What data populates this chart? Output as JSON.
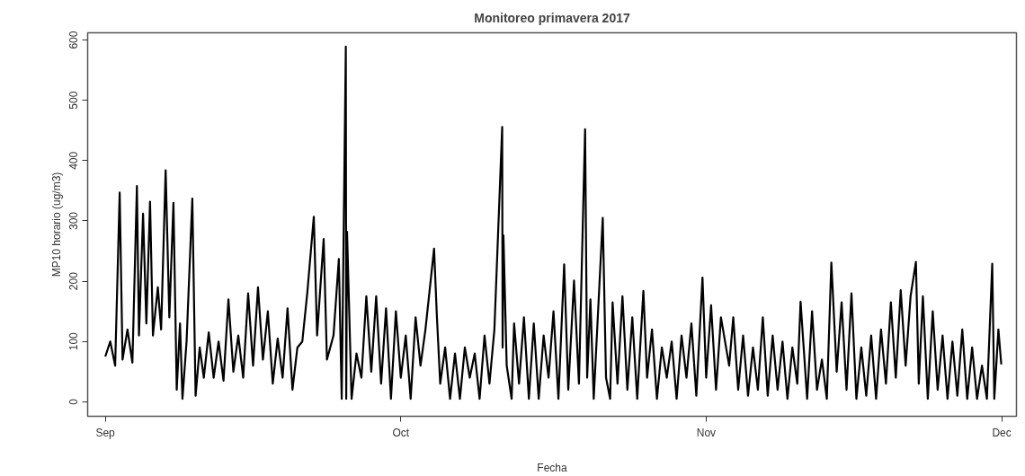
{
  "chart_data": {
    "type": "line",
    "title": "Monitoreo primavera 2017",
    "xlabel": "Fecha",
    "ylabel": "MP10 horario (ug/m3)",
    "xlim": [
      "2017-08-30T05:00",
      "2017-12-02T12:00"
    ],
    "ylim": [
      -24,
      612
    ],
    "xticks": [
      {
        "value": "2017-09-01",
        "label": "Sep"
      },
      {
        "value": "2017-10-01",
        "label": "Oct"
      },
      {
        "value": "2017-11-01",
        "label": "Nov"
      },
      {
        "value": "2017-12-01",
        "label": "Dec"
      }
    ],
    "yticks": [
      0,
      100,
      200,
      300,
      400,
      500,
      600
    ],
    "x": [
      "2017-09-01T00:00",
      "2017-09-01T12:00",
      "2017-09-02T00:00",
      "2017-09-02T11:00",
      "2017-09-02T18:00",
      "2017-09-03T06:00",
      "2017-09-03T18:00",
      "2017-09-04T05:00",
      "2017-09-04T10:00",
      "2017-09-04T20:00",
      "2017-09-05T04:00",
      "2017-09-05T13:00",
      "2017-09-05T20:00",
      "2017-09-06T08:00",
      "2017-09-06T16:00",
      "2017-09-07T03:00",
      "2017-09-07T12:00",
      "2017-09-07T22:00",
      "2017-09-08T06:00",
      "2017-09-08T14:00",
      "2017-09-08T20:00",
      "2017-09-09T06:00",
      "2017-09-09T20:00",
      "2017-09-10T04:00",
      "2017-09-10T14:00",
      "2017-09-11T00:00",
      "2017-09-11T12:00",
      "2017-09-12T00:00",
      "2017-09-12T12:00",
      "2017-09-13T00:00",
      "2017-09-13T12:00",
      "2017-09-14T00:00",
      "2017-09-14T12:00",
      "2017-09-15T00:00",
      "2017-09-15T12:00",
      "2017-09-16T00:00",
      "2017-09-16T12:00",
      "2017-09-17T00:00",
      "2017-09-17T12:00",
      "2017-09-18T00:00",
      "2017-09-18T12:00",
      "2017-09-19T00:00",
      "2017-09-19T12:00",
      "2017-09-20T00:00",
      "2017-09-20T12:00",
      "2017-09-21T00:00",
      "2017-09-21T12:00",
      "2017-09-22T04:00",
      "2017-09-22T12:00",
      "2017-09-23T04:00",
      "2017-09-23T12:00",
      "2017-09-24T04:00",
      "2017-09-24T17:00",
      "2017-09-25T00:00",
      "2017-09-25T10:00",
      "2017-09-25T11:00",
      "2017-09-25T13:00",
      "2017-09-26T00:00",
      "2017-09-26T12:00",
      "2017-09-27T00:00",
      "2017-09-27T12:00",
      "2017-09-28T00:00",
      "2017-09-28T12:00",
      "2017-09-29T00:00",
      "2017-09-29T12:00",
      "2017-09-30T00:00",
      "2017-09-30T12:00",
      "2017-10-01T00:00",
      "2017-10-01T12:00",
      "2017-10-02T00:00",
      "2017-10-02T12:00",
      "2017-10-03T00:00",
      "2017-10-03T12:00",
      "2017-10-04T09:00",
      "2017-10-04T16:00",
      "2017-10-05T00:00",
      "2017-10-05T12:00",
      "2017-10-06T00:00",
      "2017-10-06T12:00",
      "2017-10-07T00:00",
      "2017-10-07T12:00",
      "2017-10-08T00:00",
      "2017-10-08T12:00",
      "2017-10-09T00:00",
      "2017-10-09T12:00",
      "2017-10-10T00:00",
      "2017-10-10T12:00",
      "2017-10-11T07:00",
      "2017-10-11T08:00",
      "2017-10-11T10:00",
      "2017-10-11T18:00",
      "2017-10-12T06:00",
      "2017-10-12T12:00",
      "2017-10-13T00:00",
      "2017-10-13T12:00",
      "2017-10-14T00:00",
      "2017-10-14T12:00",
      "2017-10-15T00:00",
      "2017-10-15T12:00",
      "2017-10-16T00:00",
      "2017-10-16T12:00",
      "2017-10-17T00:00",
      "2017-10-17T14:00",
      "2017-10-18T00:00",
      "2017-10-18T14:00",
      "2017-10-19T02:00",
      "2017-10-19T17:00",
      "2017-10-19T22:00",
      "2017-10-20T06:00",
      "2017-10-20T14:00",
      "2017-10-21T12:00",
      "2017-10-21T20:00",
      "2017-10-22T06:00",
      "2017-10-22T12:00",
      "2017-10-23T00:00",
      "2017-10-23T12:00",
      "2017-10-24T00:00",
      "2017-10-24T12:00",
      "2017-10-25T00:00",
      "2017-10-25T15:00",
      "2017-10-26T00:00",
      "2017-10-26T12:00",
      "2017-10-27T00:00",
      "2017-10-27T12:00",
      "2017-10-28T00:00",
      "2017-10-28T12:00",
      "2017-10-29T00:00",
      "2017-10-29T12:00",
      "2017-10-30T00:00",
      "2017-10-30T12:00",
      "2017-10-31T00:00",
      "2017-10-31T15:00",
      "2017-11-01T00:00",
      "2017-11-01T12:00",
      "2017-11-02T00:00",
      "2017-11-02T12:00",
      "2017-11-03T08:00",
      "2017-11-03T18:00",
      "2017-11-04T06:00",
      "2017-11-04T18:00",
      "2017-11-05T06:00",
      "2017-11-05T18:00",
      "2017-11-06T06:00",
      "2017-11-06T18:00",
      "2017-11-07T06:00",
      "2017-11-07T18:00",
      "2017-11-08T06:00",
      "2017-11-08T18:00",
      "2017-11-09T06:00",
      "2017-11-09T18:00",
      "2017-11-10T06:00",
      "2017-11-10T14:00",
      "2017-11-11T06:00",
      "2017-11-11T18:00",
      "2017-11-12T06:00",
      "2017-11-12T18:00",
      "2017-11-13T06:00",
      "2017-11-13T17:00",
      "2017-11-14T06:00",
      "2017-11-14T18:00",
      "2017-11-15T06:00",
      "2017-11-15T18:00",
      "2017-11-16T06:00",
      "2017-11-16T18:00",
      "2017-11-17T06:00",
      "2017-11-17T18:00",
      "2017-11-18T06:00",
      "2017-11-18T18:00",
      "2017-11-19T06:00",
      "2017-11-19T18:00",
      "2017-11-20T06:00",
      "2017-11-20T18:00",
      "2017-11-21T06:00",
      "2017-11-21T18:00",
      "2017-11-22T07:00",
      "2017-11-22T14:00",
      "2017-11-23T00:00",
      "2017-11-23T12:00",
      "2017-11-24T00:00",
      "2017-11-24T12:00",
      "2017-11-25T00:00",
      "2017-11-25T12:00",
      "2017-11-26T00:00",
      "2017-11-26T12:00",
      "2017-11-27T00:00",
      "2017-11-27T12:00",
      "2017-11-28T00:00",
      "2017-11-28T12:00",
      "2017-11-29T00:00",
      "2017-11-29T12:00",
      "2017-11-30T01:00",
      "2017-11-30T06:00",
      "2017-11-30T16:00",
      "2017-11-30T23:00"
    ],
    "series": [
      {
        "color": "#000000",
        "values": [
          75,
          100,
          60,
          347,
          70,
          120,
          65,
          358,
          110,
          312,
          130,
          332,
          110,
          190,
          120,
          384,
          140,
          330,
          20,
          130,
          5,
          100,
          337,
          10,
          90,
          40,
          115,
          40,
          100,
          35,
          170,
          50,
          110,
          40,
          180,
          60,
          190,
          70,
          150,
          30,
          105,
          40,
          155,
          20,
          90,
          100,
          180,
          307,
          110,
          270,
          70,
          110,
          237,
          5,
          589,
          5,
          282,
          5,
          80,
          40,
          175,
          50,
          175,
          30,
          155,
          5,
          150,
          40,
          110,
          5,
          140,
          60,
          120,
          254,
          140,
          30,
          90,
          5,
          80,
          5,
          90,
          40,
          80,
          5,
          110,
          30,
          120,
          456,
          90,
          276,
          60,
          5,
          130,
          30,
          140,
          5,
          130,
          5,
          110,
          40,
          150,
          5,
          228,
          20,
          201,
          30,
          452,
          40,
          170,
          5,
          305,
          40,
          5,
          165,
          30,
          175,
          20,
          140,
          5,
          184,
          40,
          120,
          5,
          90,
          40,
          100,
          5,
          110,
          40,
          130,
          10,
          206,
          40,
          160,
          20,
          140,
          60,
          140,
          20,
          110,
          10,
          90,
          20,
          140,
          10,
          110,
          20,
          100,
          5,
          90,
          30,
          166,
          5,
          150,
          20,
          70,
          5,
          231,
          50,
          165,
          20,
          180,
          5,
          90,
          10,
          110,
          5,
          120,
          30,
          165,
          40,
          185,
          60,
          175,
          232,
          30,
          175,
          5,
          150,
          20,
          110,
          5,
          100,
          10,
          120,
          5,
          90,
          5,
          60,
          5,
          229,
          5,
          120,
          62
        ]
      }
    ]
  }
}
